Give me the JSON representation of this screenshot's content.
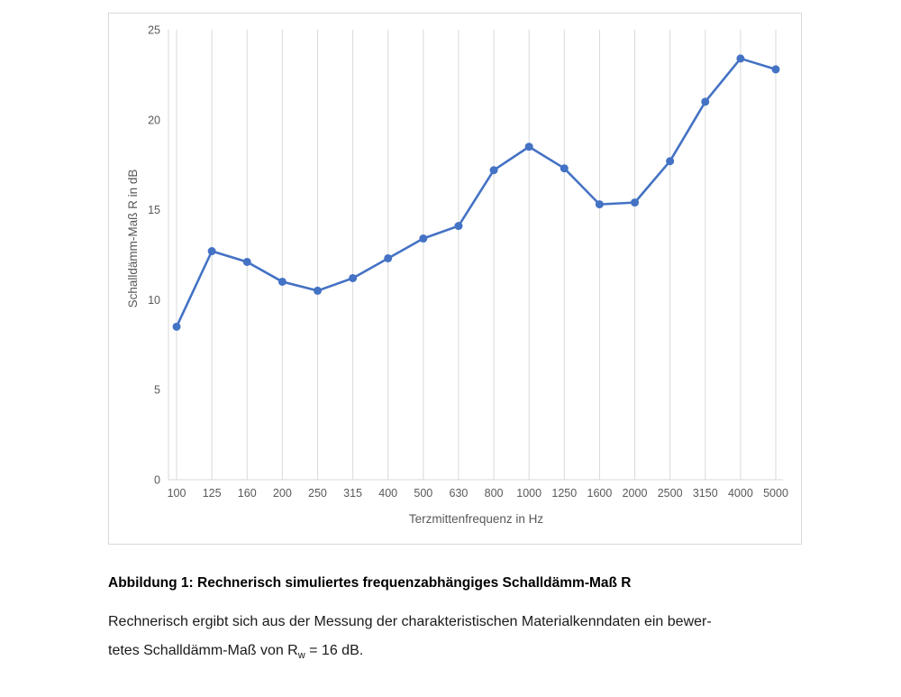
{
  "chart_data": {
    "type": "line",
    "categories": [
      "100",
      "125",
      "160",
      "200",
      "250",
      "315",
      "400",
      "500",
      "630",
      "800",
      "1000",
      "1250",
      "1600",
      "2000",
      "2500",
      "3150",
      "4000",
      "5000"
    ],
    "values": [
      8.5,
      12.7,
      12.1,
      11.0,
      10.5,
      11.2,
      12.3,
      13.4,
      14.1,
      17.2,
      18.5,
      17.3,
      15.3,
      15.4,
      17.7,
      21.0,
      23.4,
      22.8
    ],
    "title": "",
    "xlabel": "Terzmittenfrequenz in Hz",
    "ylabel": "Schalldämm-Maß R in dB",
    "ylim": [
      0,
      25
    ],
    "ytick_step": 5,
    "grid": "vertical",
    "legend": "none",
    "marker": "circle"
  },
  "figure": {
    "caption": "Abbildung 1: Rechnerisch simuliertes frequenzabhängiges Schalldämm-Maß R"
  },
  "paragraph": {
    "line1": "Rechnerisch ergibt sich aus der Messung der charakteristischen Materialkenndaten ein bewer-",
    "line2_prefix": "tetes Schalldämm-Maß von R",
    "line2_sub": "w",
    "line2_suffix": " = 16 dB."
  },
  "colors": {
    "line": "#4472C4",
    "grid": "#D9D9D9",
    "axis_text": "#595959"
  }
}
